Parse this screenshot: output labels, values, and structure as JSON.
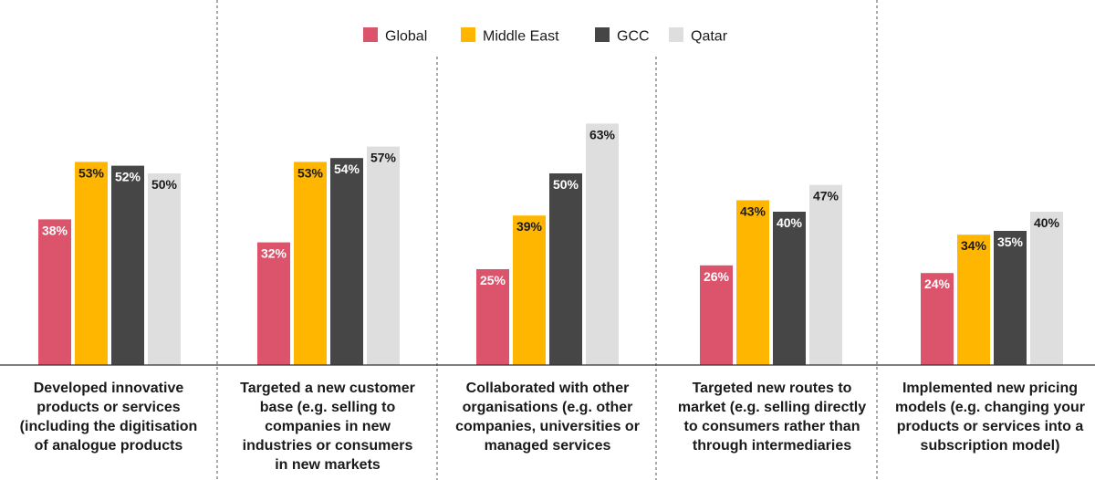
{
  "chart_data": {
    "type": "bar",
    "title": "",
    "xlabel": "",
    "ylabel": "",
    "ylim": [
      0,
      100
    ],
    "legend_position": "top-center",
    "grid": false,
    "categories": [
      [
        "Developed innovative",
        "products or services",
        "(including the digitisation",
        "of analogue products"
      ],
      [
        "Targeted a new customer",
        "base (e.g. selling to",
        "companies in new",
        "industries or consumers",
        "in new markets"
      ],
      [
        "Collaborated with other",
        "organisations (e.g. other",
        "companies, universities or",
        "managed services"
      ],
      [
        "Targeted new routes to",
        "market (e.g. selling directly",
        "to consumers rather than",
        "through intermediaries"
      ],
      [
        "Implemented new pricing",
        "models (e.g. changing your",
        "products or services into a",
        "subscription model)"
      ]
    ],
    "series": [
      {
        "name": "Global",
        "color": "#dc546c",
        "label_color": "#ffffff",
        "values": [
          38,
          32,
          25,
          26,
          24
        ],
        "labels": [
          "38%",
          "32%",
          "25%",
          "26%",
          "24%"
        ]
      },
      {
        "name": "Middle East",
        "color": "#ffb600",
        "label_color": "#1a1a1a",
        "values": [
          53,
          53,
          39,
          43,
          34
        ],
        "labels": [
          "53%",
          "53%",
          "39%",
          "43%",
          "34%"
        ]
      },
      {
        "name": "GCC",
        "color": "#464646",
        "label_color": "#ffffff",
        "values": [
          52,
          54,
          50,
          40,
          35
        ],
        "labels": [
          "52%",
          "54%",
          "50%",
          "40%",
          "35%"
        ]
      },
      {
        "name": "Qatar",
        "color": "#dedede",
        "label_color": "#1a1a1a",
        "values": [
          50,
          57,
          63,
          47,
          40
        ],
        "labels": [
          "50%",
          "57%",
          "63%",
          "47%",
          "40%"
        ]
      }
    ]
  }
}
